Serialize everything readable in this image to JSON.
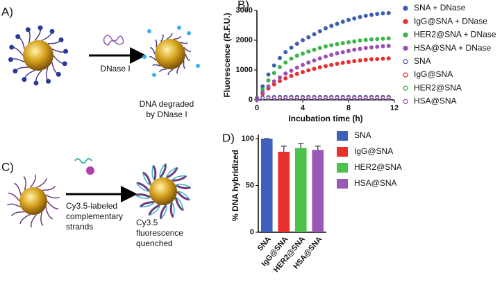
{
  "panels": {
    "A": {
      "label": "A)",
      "enzyme": "DNase I",
      "result": [
        "DNA degraded",
        "by DNase I"
      ]
    },
    "C": {
      "label": "C)",
      "reagent": [
        "Cy3.5-labeled",
        "complementary",
        "strands"
      ],
      "result": [
        "Cy3.5",
        "fluorescence",
        "quenched"
      ]
    }
  },
  "chart_data": [
    {
      "type": "scatter",
      "panel": "B)",
      "xlabel": "Incubation time (h)",
      "ylabel": "Fluorescence (R.F.U.)",
      "x": [
        0,
        0.5,
        1,
        1.5,
        2,
        2.5,
        3,
        3.5,
        4,
        4.5,
        5,
        5.5,
        6,
        6.5,
        7,
        7.5,
        8,
        8.5,
        9,
        9.5,
        10,
        10.5,
        11,
        11.5
      ],
      "xlim": [
        0,
        12
      ],
      "xticks": [
        0,
        4,
        8,
        12
      ],
      "ylim": [
        0,
        3000
      ],
      "yticks": [
        0,
        1000,
        2000,
        3000
      ],
      "series": [
        {
          "name": "SNA + DNase",
          "color": "#3d5fb0",
          "marker": "filled",
          "values": [
            0,
            450,
            850,
            1150,
            1400,
            1600,
            1750,
            1880,
            2000,
            2100,
            2200,
            2300,
            2400,
            2480,
            2550,
            2620,
            2680,
            2730,
            2780,
            2820,
            2850,
            2880,
            2900,
            2910
          ]
        },
        {
          "name": "IgG@SNA + DNase",
          "color": "#e53030",
          "marker": "filled",
          "values": [
            0,
            200,
            380,
            520,
            630,
            720,
            800,
            870,
            930,
            990,
            1040,
            1090,
            1130,
            1170,
            1210,
            1240,
            1270,
            1300,
            1320,
            1340,
            1360,
            1370,
            1380,
            1390
          ]
        },
        {
          "name": "HER2@SNA + DNase",
          "color": "#3cb54a",
          "marker": "filled",
          "values": [
            0,
            350,
            650,
            900,
            1100,
            1250,
            1380,
            1480,
            1550,
            1620,
            1680,
            1740,
            1790,
            1830,
            1870,
            1900,
            1930,
            1960,
            1990,
            2010,
            2030,
            2040,
            2050,
            2060
          ]
        },
        {
          "name": "HSA@SNA + DNase",
          "color": "#9b4fb5",
          "marker": "filled",
          "values": [
            0,
            250,
            450,
            620,
            750,
            880,
            980,
            1080,
            1170,
            1250,
            1320,
            1390,
            1450,
            1510,
            1560,
            1600,
            1640,
            1680,
            1710,
            1740,
            1760,
            1780,
            1800,
            1810
          ]
        },
        {
          "name": "SNA",
          "color": "#3d5fb0",
          "marker": "open",
          "values": [
            60,
            80,
            90,
            95,
            100,
            100,
            100,
            100,
            100,
            100,
            100,
            100,
            100,
            100,
            100,
            100,
            100,
            100,
            100,
            100,
            100,
            100,
            100,
            100
          ]
        },
        {
          "name": "IgG@SNA",
          "color": "#e53030",
          "marker": "open",
          "values": [
            50,
            60,
            65,
            70,
            70,
            70,
            70,
            70,
            70,
            70,
            70,
            70,
            70,
            70,
            70,
            70,
            70,
            70,
            70,
            70,
            70,
            70,
            70,
            70
          ]
        },
        {
          "name": "HER2@SNA",
          "color": "#3cb54a",
          "marker": "open",
          "values": [
            50,
            60,
            65,
            65,
            65,
            65,
            65,
            65,
            65,
            65,
            65,
            65,
            65,
            65,
            65,
            65,
            65,
            65,
            65,
            65,
            65,
            65,
            65,
            65
          ]
        },
        {
          "name": "HSA@SNA",
          "color": "#9b4fb5",
          "marker": "open",
          "values": [
            50,
            55,
            60,
            60,
            60,
            60,
            60,
            60,
            60,
            60,
            60,
            60,
            60,
            60,
            60,
            60,
            60,
            60,
            60,
            60,
            60,
            60,
            60,
            60
          ]
        }
      ]
    },
    {
      "type": "bar",
      "panel": "D)",
      "ylabel": "% DNA hybridized",
      "categories": [
        "SNA",
        "IgG@SNA",
        "HER2@SNA",
        "HSA@SNA"
      ],
      "values": [
        100,
        86,
        90,
        88
      ],
      "errors": [
        0,
        6,
        5,
        4
      ],
      "colors": [
        "#3f5fbf",
        "#e8312a",
        "#4cc24c",
        "#9b59b6"
      ],
      "ylim": [
        0,
        100
      ],
      "yticks": [
        0,
        50,
        100
      ]
    }
  ]
}
